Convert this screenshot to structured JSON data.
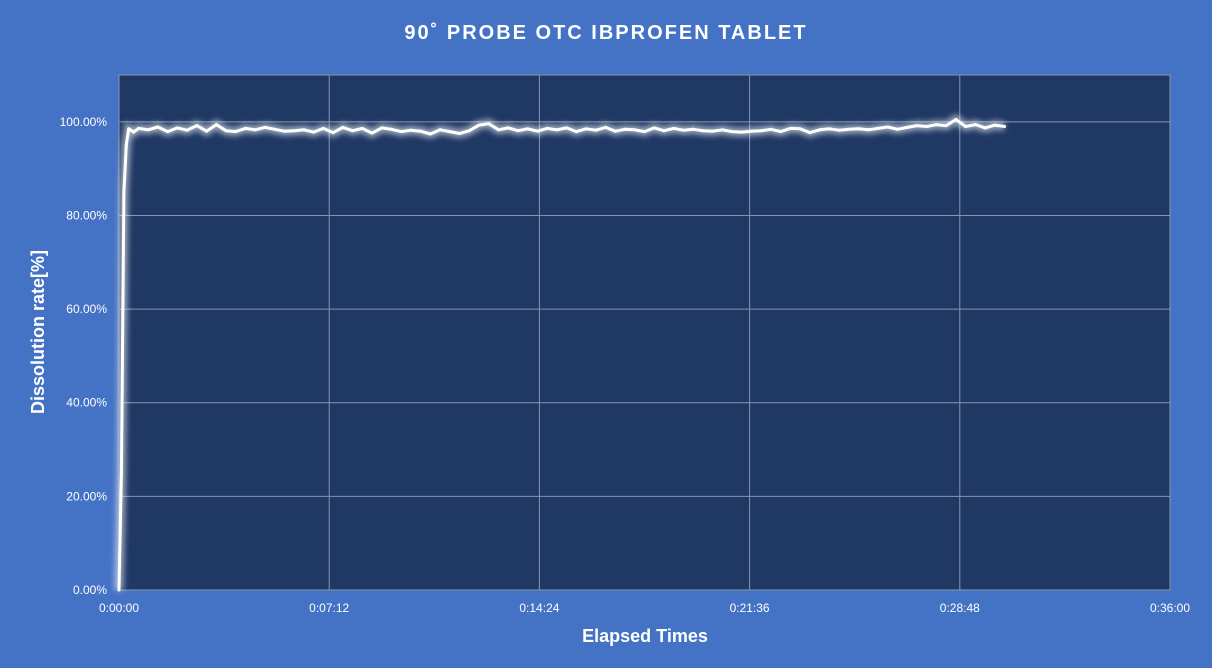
{
  "chart_data": {
    "type": "line",
    "title": "90˚ PROBE OTC IBPROFEN TABLET",
    "xlabel": "Elapsed Times",
    "ylabel": "Dissolution rate[%]",
    "xlim": [
      "0:00:00",
      "0:36:00"
    ],
    "ylim": [
      0,
      110
    ],
    "x_ticks": [
      "0:00:00",
      "0:07:12",
      "0:14:24",
      "0:21:36",
      "0:28:48",
      "0:36:00"
    ],
    "y_ticks": [
      "0.00%",
      "20.00%",
      "40.00%",
      "60.00%",
      "80.00%",
      "100.00%"
    ],
    "grid": true,
    "legend": "none",
    "colors": {
      "background": "#4472C4",
      "plot_area": "#1F3864",
      "line": "#FFFFFF",
      "grid": "#8497B0"
    },
    "series": [
      {
        "x": [
          "0:00:00",
          "0:00:05",
          "0:00:10",
          "0:00:15",
          "0:00:20",
          "0:00:30",
          "0:00:40",
          "0:01:00",
          "0:01:20",
          "0:01:40",
          "0:02:00",
          "0:02:20",
          "0:02:40",
          "0:03:00",
          "0:03:20",
          "0:03:40",
          "0:04:00",
          "0:04:20",
          "0:04:40",
          "0:05:00",
          "0:05:20",
          "0:05:40",
          "0:06:00",
          "0:06:20",
          "0:06:40",
          "0:07:00",
          "0:07:20",
          "0:07:40",
          "0:08:00",
          "0:08:20",
          "0:08:40",
          "0:09:00",
          "0:09:20",
          "0:09:40",
          "0:10:00",
          "0:10:20",
          "0:10:40",
          "0:11:00",
          "0:11:20",
          "0:11:40",
          "0:12:00",
          "0:12:20",
          "0:12:40",
          "0:13:00",
          "0:13:20",
          "0:13:40",
          "0:14:00",
          "0:14:20",
          "0:14:40",
          "0:15:00",
          "0:15:20",
          "0:15:40",
          "0:16:00",
          "0:16:20",
          "0:16:40",
          "0:17:00",
          "0:17:20",
          "0:17:40",
          "0:18:00",
          "0:18:20",
          "0:18:40",
          "0:19:00",
          "0:19:20",
          "0:19:40",
          "0:20:00",
          "0:20:20",
          "0:20:40",
          "0:21:00",
          "0:21:20",
          "0:21:40",
          "0:22:00",
          "0:22:20",
          "0:22:40",
          "0:23:00",
          "0:23:20",
          "0:23:40",
          "0:24:00",
          "0:24:20",
          "0:24:40",
          "0:25:00",
          "0:25:20",
          "0:25:40",
          "0:26:00",
          "0:26:20",
          "0:26:40",
          "0:27:00",
          "0:27:20",
          "0:27:40",
          "0:28:00",
          "0:28:20",
          "0:28:40",
          "0:29:00",
          "0:29:20",
          "0:29:40",
          "0:30:00",
          "0:30:20"
        ],
        "y": [
          0,
          25,
          85,
          95,
          98.5,
          97.8,
          98.6,
          98.3,
          98.9,
          97.9,
          98.7,
          98.2,
          99.2,
          98.0,
          99.4,
          98.1,
          97.9,
          98.6,
          98.3,
          98.8,
          98.4,
          98.0,
          98.1,
          98.3,
          97.8,
          98.6,
          97.7,
          98.8,
          98.1,
          98.6,
          97.6,
          98.7,
          98.4,
          97.9,
          98.2,
          98.0,
          97.4,
          98.3,
          97.9,
          97.5,
          98.1,
          99.3,
          99.6,
          98.3,
          98.7,
          98.1,
          98.5,
          98.0,
          98.6,
          98.3,
          98.7,
          97.9,
          98.5,
          98.2,
          98.8,
          98.0,
          98.4,
          98.3,
          97.9,
          98.7,
          98.1,
          98.6,
          98.2,
          98.4,
          98.1,
          98.0,
          98.3,
          97.9,
          97.8,
          98.0,
          98.1,
          98.4,
          97.9,
          98.6,
          98.5,
          97.7,
          98.3,
          98.5,
          98.2,
          98.4,
          98.5,
          98.3,
          98.6,
          98.9,
          98.4,
          98.8,
          99.2,
          99.0,
          99.4,
          99.2,
          100.5,
          99.0,
          99.4,
          98.7,
          99.3,
          99.0
        ]
      }
    ]
  }
}
